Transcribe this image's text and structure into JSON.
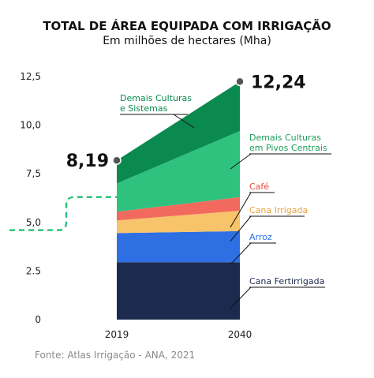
{
  "chart_data": {
    "type": "area",
    "title": "TOTAL DE ÁREA EQUIPADA COM IRRIGAÇÃO",
    "subtitle": "Em milhões de hectares (Mha)",
    "x": [
      "2019",
      "2040"
    ],
    "ylim": [
      0,
      12.5
    ],
    "yticks": [
      "0",
      "2.5",
      "5,0",
      "7,5",
      "10,0",
      "12,5"
    ],
    "totals": [
      8.19,
      12.24
    ],
    "total_labels": [
      "8,19",
      "12,24"
    ],
    "series": [
      {
        "name": "Cana Fertirrigada",
        "values": [
          2.95,
          2.95
        ],
        "color": "#1b2a4e",
        "label_color": "#1b2a4e"
      },
      {
        "name": "Arroz",
        "values": [
          1.5,
          1.6
        ],
        "color": "#2f6fe4",
        "label_color": "#2f6fe4"
      },
      {
        "name": "Cana Irrigada",
        "values": [
          0.65,
          1.05
        ],
        "color": "#f7c36b",
        "label_color": "#e8a33c"
      },
      {
        "name": "Café",
        "values": [
          0.45,
          0.7
        ],
        "color": "#f26a5e",
        "label_color": "#e64a3c"
      },
      {
        "name": "Demais Culturas em Pivos Centrais",
        "values": [
          1.45,
          3.4
        ],
        "color": "#2ec27e",
        "label_color": "#1a9e5a"
      },
      {
        "name": "Demais Culturas e Sistemas",
        "values": [
          1.19,
          2.54
        ],
        "color": "#0b8a4f",
        "label_color": "#0b8a4f"
      }
    ],
    "reference_line": {
      "style": "dashed",
      "color": "#2ec27e",
      "values": [
        4.6,
        6.3
      ]
    },
    "grid": false,
    "legend": "right"
  },
  "source": "Fonte: Atlas Irrigação - ANA, 2021"
}
